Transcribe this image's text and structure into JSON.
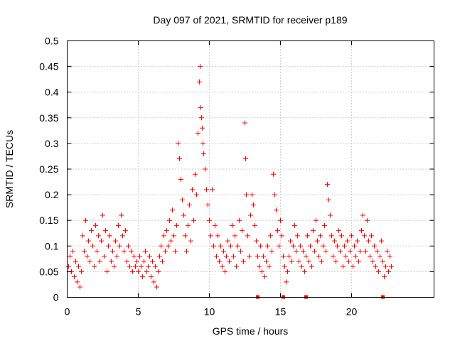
{
  "chart_data": {
    "type": "scatter",
    "title": "Day 097 of 2021, SRMTID for receiver p189",
    "xlabel": "GPS time / hours",
    "ylabel": "SRMTID / TECUs",
    "xlim": [
      0,
      25.8
    ],
    "ylim": [
      0,
      0.5
    ],
    "x_ticks": [
      0,
      5,
      10,
      15,
      20
    ],
    "x_tick_labels": [
      "0",
      "5",
      "10",
      "15",
      "20"
    ],
    "y_ticks": [
      0,
      0.05,
      0.1,
      0.15,
      0.2,
      0.25,
      0.3,
      0.35,
      0.4,
      0.45,
      0.5
    ],
    "y_tick_labels": [
      "0",
      "0.05",
      "0.1",
      "0.15",
      "0.2",
      "0.25",
      "0.3",
      "0.35",
      "0.4",
      "0.45",
      "0.5"
    ],
    "grid": true,
    "marker": "plus",
    "color": "#ff0000",
    "series": [
      {
        "name": "SRMTID",
        "points": [
          [
            0.1,
            0.06
          ],
          [
            0.2,
            0.08
          ],
          [
            0.3,
            0.05
          ],
          [
            0.4,
            0.09
          ],
          [
            0.5,
            0.04
          ],
          [
            0.6,
            0.07
          ],
          [
            0.7,
            0.03
          ],
          [
            0.8,
            0.06
          ],
          [
            0.9,
            0.02
          ],
          [
            1.0,
            0.05
          ],
          [
            1.1,
            0.12
          ],
          [
            1.2,
            0.09
          ],
          [
            1.3,
            0.15
          ],
          [
            1.4,
            0.08
          ],
          [
            1.5,
            0.11
          ],
          [
            1.6,
            0.07
          ],
          [
            1.7,
            0.13
          ],
          [
            1.8,
            0.1
          ],
          [
            1.9,
            0.06
          ],
          [
            2.0,
            0.14
          ],
          [
            2.1,
            0.09
          ],
          [
            2.2,
            0.12
          ],
          [
            2.3,
            0.07
          ],
          [
            2.4,
            0.11
          ],
          [
            2.5,
            0.16
          ],
          [
            2.6,
            0.08
          ],
          [
            2.7,
            0.13
          ],
          [
            2.8,
            0.05
          ],
          [
            2.9,
            0.1
          ],
          [
            3.0,
            0.12
          ],
          [
            3.1,
            0.07
          ],
          [
            3.2,
            0.09
          ],
          [
            3.3,
            0.06
          ],
          [
            3.4,
            0.11
          ],
          [
            3.5,
            0.08
          ],
          [
            3.6,
            0.14
          ],
          [
            3.7,
            0.1
          ],
          [
            3.8,
            0.16
          ],
          [
            3.9,
            0.12
          ],
          [
            4.0,
            0.09
          ],
          [
            4.1,
            0.13
          ],
          [
            4.2,
            0.07
          ],
          [
            4.3,
            0.1
          ],
          [
            4.4,
            0.06
          ],
          [
            4.5,
            0.09
          ],
          [
            4.6,
            0.05
          ],
          [
            4.7,
            0.08
          ],
          [
            4.8,
            0.06
          ],
          [
            4.9,
            0.07
          ],
          [
            5.0,
            0.05
          ],
          [
            5.1,
            0.08
          ],
          [
            5.2,
            0.06
          ],
          [
            5.3,
            0.04
          ],
          [
            5.4,
            0.07
          ],
          [
            5.5,
            0.09
          ],
          [
            5.6,
            0.05
          ],
          [
            5.7,
            0.06
          ],
          [
            5.8,
            0.08
          ],
          [
            5.9,
            0.04
          ],
          [
            6.0,
            0.07
          ],
          [
            6.1,
            0.03
          ],
          [
            6.2,
            0.06
          ],
          [
            6.3,
            0.02
          ],
          [
            6.4,
            0.05
          ],
          [
            6.5,
            0.08
          ],
          [
            6.6,
            0.1
          ],
          [
            6.7,
            0.07
          ],
          [
            6.8,
            0.12
          ],
          [
            6.9,
            0.09
          ],
          [
            7.0,
            0.13
          ],
          [
            7.1,
            0.1
          ],
          [
            7.2,
            0.15
          ],
          [
            7.3,
            0.11
          ],
          [
            7.4,
            0.17
          ],
          [
            7.5,
            0.12
          ],
          [
            7.6,
            0.09
          ],
          [
            7.7,
            0.14
          ],
          [
            7.8,
            0.3
          ],
          [
            7.9,
            0.27
          ],
          [
            8.0,
            0.23
          ],
          [
            8.1,
            0.19
          ],
          [
            8.2,
            0.16
          ],
          [
            8.3,
            0.12
          ],
          [
            8.4,
            0.09
          ],
          [
            8.5,
            0.14
          ],
          [
            8.6,
            0.18
          ],
          [
            8.7,
            0.11
          ],
          [
            8.8,
            0.21
          ],
          [
            8.9,
            0.15
          ],
          [
            9.0,
            0.24
          ],
          [
            9.1,
            0.2
          ],
          [
            9.2,
            0.32
          ],
          [
            9.3,
            0.42
          ],
          [
            9.35,
            0.45
          ],
          [
            9.4,
            0.37
          ],
          [
            9.45,
            0.35
          ],
          [
            9.5,
            0.33
          ],
          [
            9.55,
            0.3
          ],
          [
            9.6,
            0.28
          ],
          [
            9.7,
            0.25
          ],
          [
            9.8,
            0.21
          ],
          [
            9.9,
            0.18
          ],
          [
            10.0,
            0.15
          ],
          [
            10.1,
            0.12
          ],
          [
            10.2,
            0.21
          ],
          [
            10.3,
            0.1
          ],
          [
            10.4,
            0.14
          ],
          [
            10.5,
            0.08
          ],
          [
            10.6,
            0.12
          ],
          [
            10.7,
            0.07
          ],
          [
            10.8,
            0.1
          ],
          [
            10.9,
            0.06
          ],
          [
            11.0,
            0.09
          ],
          [
            11.1,
            0.05
          ],
          [
            11.2,
            0.08
          ],
          [
            11.3,
            0.11
          ],
          [
            11.4,
            0.07
          ],
          [
            11.5,
            0.1
          ],
          [
            11.6,
            0.14
          ],
          [
            11.7,
            0.08
          ],
          [
            11.8,
            0.12
          ],
          [
            11.9,
            0.06
          ],
          [
            12.0,
            0.1
          ],
          [
            12.1,
            0.15
          ],
          [
            12.2,
            0.09
          ],
          [
            12.3,
            0.13
          ],
          [
            12.4,
            0.07
          ],
          [
            12.5,
            0.34
          ],
          [
            12.55,
            0.27
          ],
          [
            12.6,
            0.2
          ],
          [
            12.7,
            0.12
          ],
          [
            12.8,
            0.08
          ],
          [
            12.9,
            0.16
          ],
          [
            13.0,
            0.2
          ],
          [
            13.1,
            0.18
          ],
          [
            13.2,
            0.14
          ],
          [
            13.3,
            0.11
          ],
          [
            13.4,
            0.08
          ],
          [
            13.5,
            0.06
          ],
          [
            13.6,
            0.1
          ],
          [
            13.7,
            0.05
          ],
          [
            13.8,
            0.08
          ],
          [
            13.9,
            0.04
          ],
          [
            14.0,
            0.07
          ],
          [
            14.1,
            0.1
          ],
          [
            14.2,
            0.06
          ],
          [
            14.3,
            0.12
          ],
          [
            14.4,
            0.09
          ],
          [
            14.5,
            0.24
          ],
          [
            14.6,
            0.2
          ],
          [
            14.7,
            0.17
          ],
          [
            14.8,
            0.13
          ],
          [
            14.9,
            0.1
          ],
          [
            15.0,
            0.15
          ],
          [
            15.1,
            0.12
          ],
          [
            15.2,
            0.08
          ],
          [
            15.3,
            0.06
          ],
          [
            15.4,
            0.03
          ],
          [
            15.5,
            0.05
          ],
          [
            15.6,
            0.08
          ],
          [
            15.7,
            0.11
          ],
          [
            15.8,
            0.07
          ],
          [
            15.9,
            0.1
          ],
          [
            16.0,
            0.14
          ],
          [
            16.1,
            0.09
          ],
          [
            16.2,
            0.12
          ],
          [
            16.3,
            0.07
          ],
          [
            16.4,
            0.1
          ],
          [
            16.5,
            0.06
          ],
          [
            16.6,
            0.09
          ],
          [
            16.7,
            0.05
          ],
          [
            16.8,
            0.08
          ],
          [
            16.9,
            0.12
          ],
          [
            17.0,
            0.07
          ],
          [
            17.1,
            0.1
          ],
          [
            17.2,
            0.06
          ],
          [
            17.3,
            0.13
          ],
          [
            17.4,
            0.09
          ],
          [
            17.5,
            0.15
          ],
          [
            17.6,
            0.11
          ],
          [
            17.7,
            0.08
          ],
          [
            17.8,
            0.12
          ],
          [
            17.9,
            0.07
          ],
          [
            18.0,
            0.1
          ],
          [
            18.1,
            0.14
          ],
          [
            18.2,
            0.09
          ],
          [
            18.3,
            0.22
          ],
          [
            18.4,
            0.19
          ],
          [
            18.5,
            0.16
          ],
          [
            18.6,
            0.12
          ],
          [
            18.7,
            0.08
          ],
          [
            18.8,
            0.11
          ],
          [
            18.9,
            0.07
          ],
          [
            19.0,
            0.1
          ],
          [
            19.1,
            0.13
          ],
          [
            19.2,
            0.09
          ],
          [
            19.3,
            0.12
          ],
          [
            19.4,
            0.06
          ],
          [
            19.5,
            0.1
          ],
          [
            19.6,
            0.08
          ],
          [
            19.7,
            0.11
          ],
          [
            19.8,
            0.07
          ],
          [
            19.9,
            0.09
          ],
          [
            20.0,
            0.12
          ],
          [
            20.1,
            0.06
          ],
          [
            20.2,
            0.1
          ],
          [
            20.3,
            0.08
          ],
          [
            20.4,
            0.11
          ],
          [
            20.5,
            0.07
          ],
          [
            20.6,
            0.09
          ],
          [
            20.7,
            0.13
          ],
          [
            20.8,
            0.16
          ],
          [
            20.9,
            0.12
          ],
          [
            21.0,
            0.09
          ],
          [
            21.1,
            0.15
          ],
          [
            21.2,
            0.11
          ],
          [
            21.3,
            0.08
          ],
          [
            21.4,
            0.12
          ],
          [
            21.5,
            0.07
          ],
          [
            21.6,
            0.1
          ],
          [
            21.7,
            0.06
          ],
          [
            21.8,
            0.09
          ],
          [
            21.9,
            0.05
          ],
          [
            22.0,
            0.08
          ],
          [
            22.1,
            0.11
          ],
          [
            22.2,
            0.07
          ],
          [
            22.3,
            0.04
          ],
          [
            22.4,
            0.06
          ],
          [
            22.5,
            0.09
          ],
          [
            22.6,
            0.05
          ],
          [
            22.7,
            0.08
          ],
          [
            22.8,
            0.06
          ]
        ]
      }
    ],
    "baseline_markers_x": [
      13.4,
      15.2,
      16.8,
      22.2
    ]
  }
}
